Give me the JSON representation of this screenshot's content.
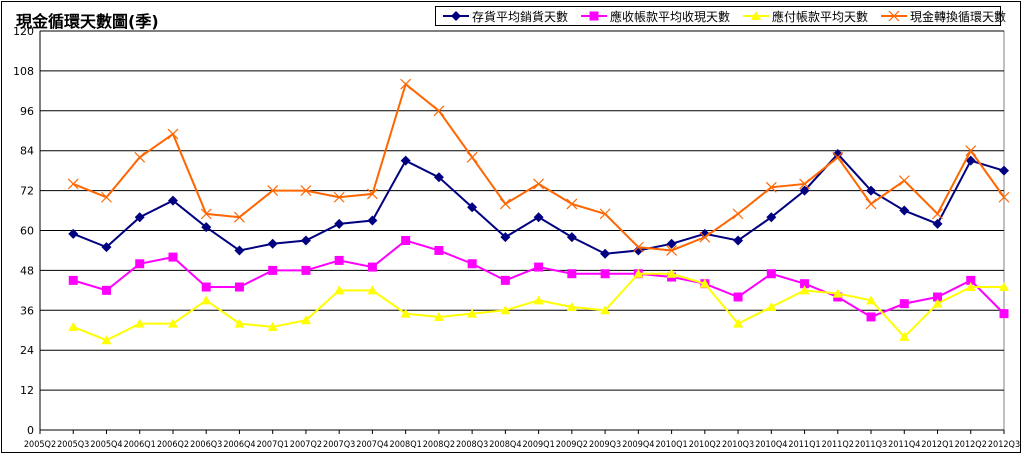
{
  "chart_data": {
    "type": "line",
    "title": "現金循環天數圖(季)",
    "ylim": [
      0,
      120
    ],
    "yticks": [
      0,
      12,
      24,
      36,
      48,
      60,
      72,
      84,
      96,
      108,
      120
    ],
    "grid": true,
    "legend_position": "top-right",
    "categories": [
      "2005Q2",
      "2005Q3",
      "2005Q4",
      "2006Q1",
      "2006Q2",
      "2006Q3",
      "2006Q4",
      "2007Q1",
      "2007Q2",
      "2007Q3",
      "2007Q4",
      "2008Q1",
      "2008Q2",
      "2008Q3",
      "2008Q4",
      "2009Q1",
      "2009Q2",
      "2009Q3",
      "2009Q4",
      "2010Q1",
      "2010Q2",
      "2010Q3",
      "2010Q4",
      "2011Q1",
      "2011Q2",
      "2011Q3",
      "2011Q4",
      "2012Q1",
      "2012Q2",
      "2012Q3"
    ],
    "series": [
      {
        "name": "存貨平均銷貨天數",
        "color": "#000080",
        "marker": "diamond",
        "values": [
          null,
          59,
          55,
          64,
          69,
          61,
          54,
          56,
          57,
          62,
          63,
          81,
          76,
          67,
          58,
          64,
          58,
          53,
          54,
          56,
          59,
          57,
          64,
          72,
          83,
          72,
          66,
          62,
          81,
          78
        ]
      },
      {
        "name": "應收帳款平均收現天數",
        "color": "#ff00ff",
        "marker": "square",
        "values": [
          null,
          45,
          42,
          50,
          52,
          43,
          43,
          48,
          48,
          51,
          49,
          57,
          54,
          50,
          45,
          49,
          47,
          47,
          47,
          46,
          44,
          40,
          47,
          44,
          40,
          34,
          38,
          40,
          45,
          35
        ]
      },
      {
        "name": "應付帳款平均天數",
        "color": "#ffff00",
        "marker": "triangle",
        "values": [
          null,
          31,
          27,
          32,
          32,
          39,
          32,
          31,
          33,
          42,
          42,
          35,
          34,
          35,
          36,
          39,
          37,
          36,
          47,
          47,
          44,
          32,
          37,
          42,
          41,
          39,
          28,
          38,
          43,
          43
        ]
      },
      {
        "name": "現金轉換循環天數",
        "color": "#ff6600",
        "marker": "x",
        "values": [
          null,
          74,
          70,
          82,
          89,
          65,
          64,
          72,
          72,
          70,
          71,
          104,
          96,
          82,
          68,
          74,
          68,
          65,
          55,
          54,
          58,
          65,
          73,
          74,
          82,
          68,
          75,
          65,
          84,
          70
        ]
      }
    ]
  }
}
